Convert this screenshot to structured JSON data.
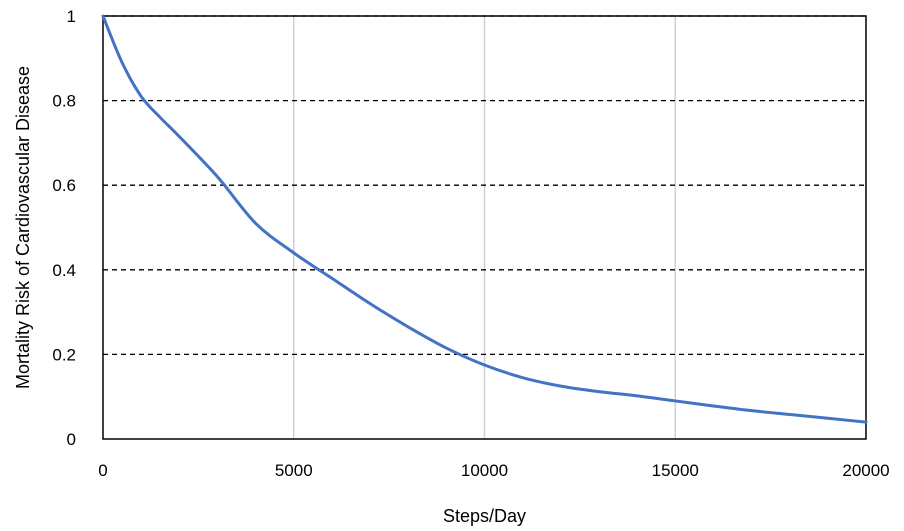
{
  "chart_data": {
    "type": "line",
    "title": "",
    "xlabel": "Steps/Day",
    "ylabel": "Mortality Risk of Cardiovascular Disease",
    "xlim": [
      0,
      20000
    ],
    "ylim": [
      0,
      1
    ],
    "x_ticks": [
      "0",
      "5000",
      "10000",
      "15000",
      "20000"
    ],
    "y_ticks": [
      "0",
      "0.2",
      "0.4",
      "0.6",
      "0.8",
      "1"
    ],
    "grid": {
      "vertical": "solid light gray",
      "horizontal": "dashed black"
    },
    "legend": "none",
    "series": [
      {
        "color": "#4472C4",
        "x": [
          0,
          500,
          1000,
          1500,
          2000,
          3000,
          4000,
          5000,
          6000,
          7000,
          8000,
          9000,
          10000,
          11000,
          12000,
          13000,
          14000,
          15000,
          16000,
          17000,
          18000,
          19000,
          20000
        ],
        "y": [
          1.0,
          0.89,
          0.81,
          0.76,
          0.715,
          0.62,
          0.51,
          0.44,
          0.38,
          0.32,
          0.265,
          0.215,
          0.175,
          0.145,
          0.125,
          0.112,
          0.102,
          0.09,
          0.078,
          0.067,
          0.058,
          0.049,
          0.04
        ]
      }
    ]
  }
}
